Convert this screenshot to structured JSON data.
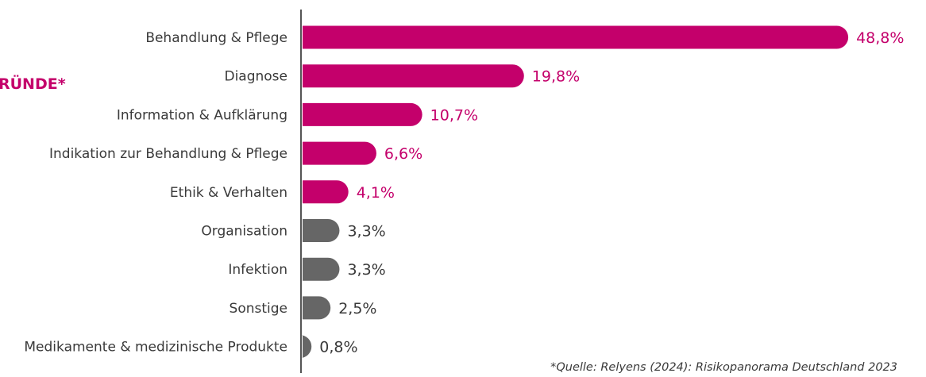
{
  "chart_data": {
    "type": "bar",
    "orientation": "horizontal",
    "heading": "RÜNDE*",
    "categories": [
      "Behandlung & Pflege",
      "Diagnose",
      "Information & Aufklärung",
      "Indikation zur Behandlung & Pflege",
      "Ethik & Verhalten",
      "Organisation",
      "Infektion",
      "Sonstige",
      "Medikamente & medizinische Produkte"
    ],
    "values": [
      48.8,
      19.8,
      10.7,
      6.6,
      4.1,
      3.3,
      3.3,
      2.5,
      0.8
    ],
    "value_labels": [
      "48,8%",
      "19,8%",
      "10,7%",
      "6,6%",
      "4,1%",
      "3,3%",
      "3,3%",
      "2,5%",
      "0,8%"
    ],
    "highlight_count": 5,
    "xlim": [
      0,
      50
    ],
    "grid": false,
    "source_note": "*Quelle: Relyens (2024): Risikopanorama Deutschland 2023"
  },
  "colors": {
    "highlight": "#c4006b",
    "muted": "#666666",
    "axis": "#555555",
    "text": "#3a3a3a"
  }
}
